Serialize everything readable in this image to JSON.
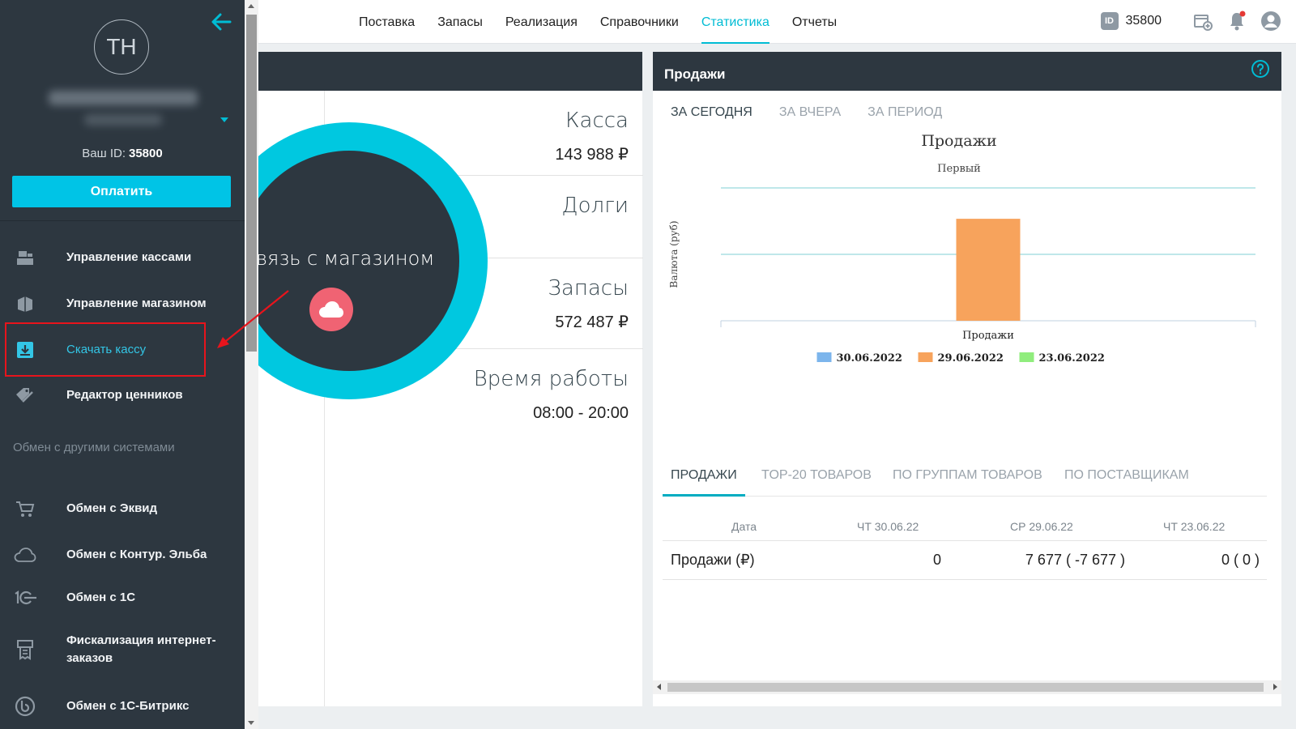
{
  "nav": {
    "items": [
      {
        "label": "Поставка",
        "active": false
      },
      {
        "label": "Запасы",
        "active": false
      },
      {
        "label": "Реализация",
        "active": false
      },
      {
        "label": "Справочники",
        "active": false
      },
      {
        "label": "Статистика",
        "active": true
      },
      {
        "label": "Отчеты",
        "active": false
      }
    ],
    "id_badge": "ID",
    "id_value": "35800"
  },
  "sidebar": {
    "avatar_initials": "TH",
    "user_id_label": "Ваш ID:",
    "user_id_value": "35800",
    "pay_button": "Оплатить",
    "items": [
      {
        "label": "Управление кассами",
        "icon": "cash-register-icon"
      },
      {
        "label": "Управление магазином",
        "icon": "store-icon"
      },
      {
        "label": "Скачать кассу",
        "icon": "download-icon",
        "active": true
      },
      {
        "label": "Редактор ценников",
        "icon": "price-tag-icon"
      }
    ],
    "section_label": "Обмен с другими системами",
    "exchange_items": [
      {
        "label": "Обмен с Эквид",
        "icon": "cart-icon"
      },
      {
        "label": "Обмен с Контур. Эльба",
        "icon": "cloud-icon"
      },
      {
        "label": "Обмен с 1С",
        "icon": "onec-icon"
      },
      {
        "label": "Фискализация интернет-заказов",
        "icon": "receipt-icon"
      },
      {
        "label": "Обмен с 1С-Битрикс",
        "icon": "bitrix-icon"
      }
    ]
  },
  "store_panel": {
    "connection_text": "вязь с магазином",
    "stats": [
      {
        "title": "Касса",
        "value": "143 988 ₽"
      },
      {
        "title": "Долги",
        "value": ""
      },
      {
        "title": "Запасы",
        "value": "572 487 ₽"
      },
      {
        "title": "Время работы",
        "value": "08:00 - 20:00"
      }
    ]
  },
  "sales_card": {
    "title": "Продажи",
    "period_tabs": [
      {
        "label": "ЗА СЕГОДНЯ",
        "active": true
      },
      {
        "label": "ЗА ВЧЕРА",
        "active": false
      },
      {
        "label": "ЗА ПЕРИОД",
        "active": false
      }
    ],
    "data_tabs": [
      {
        "label": "ПРОДАЖИ",
        "active": true
      },
      {
        "label": "TOP-20 ТОВАРОВ",
        "active": false
      },
      {
        "label": "ПО ГРУППАМ ТОВАРОВ",
        "active": false
      },
      {
        "label": "ПО ПОСТАВЩИКАМ",
        "active": false
      }
    ],
    "table": {
      "headers": [
        "Дата",
        "ЧТ 30.06.22",
        "СР 29.06.22",
        "ЧТ 23.06.22"
      ],
      "rows": [
        [
          "Продажи (₽)",
          "0",
          "7 677 ( -7 677 )",
          "0 ( 0 )"
        ]
      ]
    }
  },
  "chart_data": {
    "type": "bar",
    "title": "Продажи",
    "subtitle": "Первый",
    "xlabel": "Продажи",
    "ylabel": "Валюта (руб)",
    "categories": [
      "Продажи"
    ],
    "series": [
      {
        "name": "30.06.2022",
        "values": [
          0
        ],
        "color": "#7cb5ec"
      },
      {
        "name": "29.06.2022",
        "values": [
          7677
        ],
        "color": "#f7a35c"
      },
      {
        "name": "23.06.2022",
        "values": [
          0
        ],
        "color": "#90ed7d"
      }
    ],
    "ylim": [
      0,
      10000
    ],
    "grid": true,
    "legend": "bottom"
  },
  "colors": {
    "accent": "#00bcd4",
    "sidebar_bg": "#2d3740",
    "highlight": "#e8141c"
  }
}
